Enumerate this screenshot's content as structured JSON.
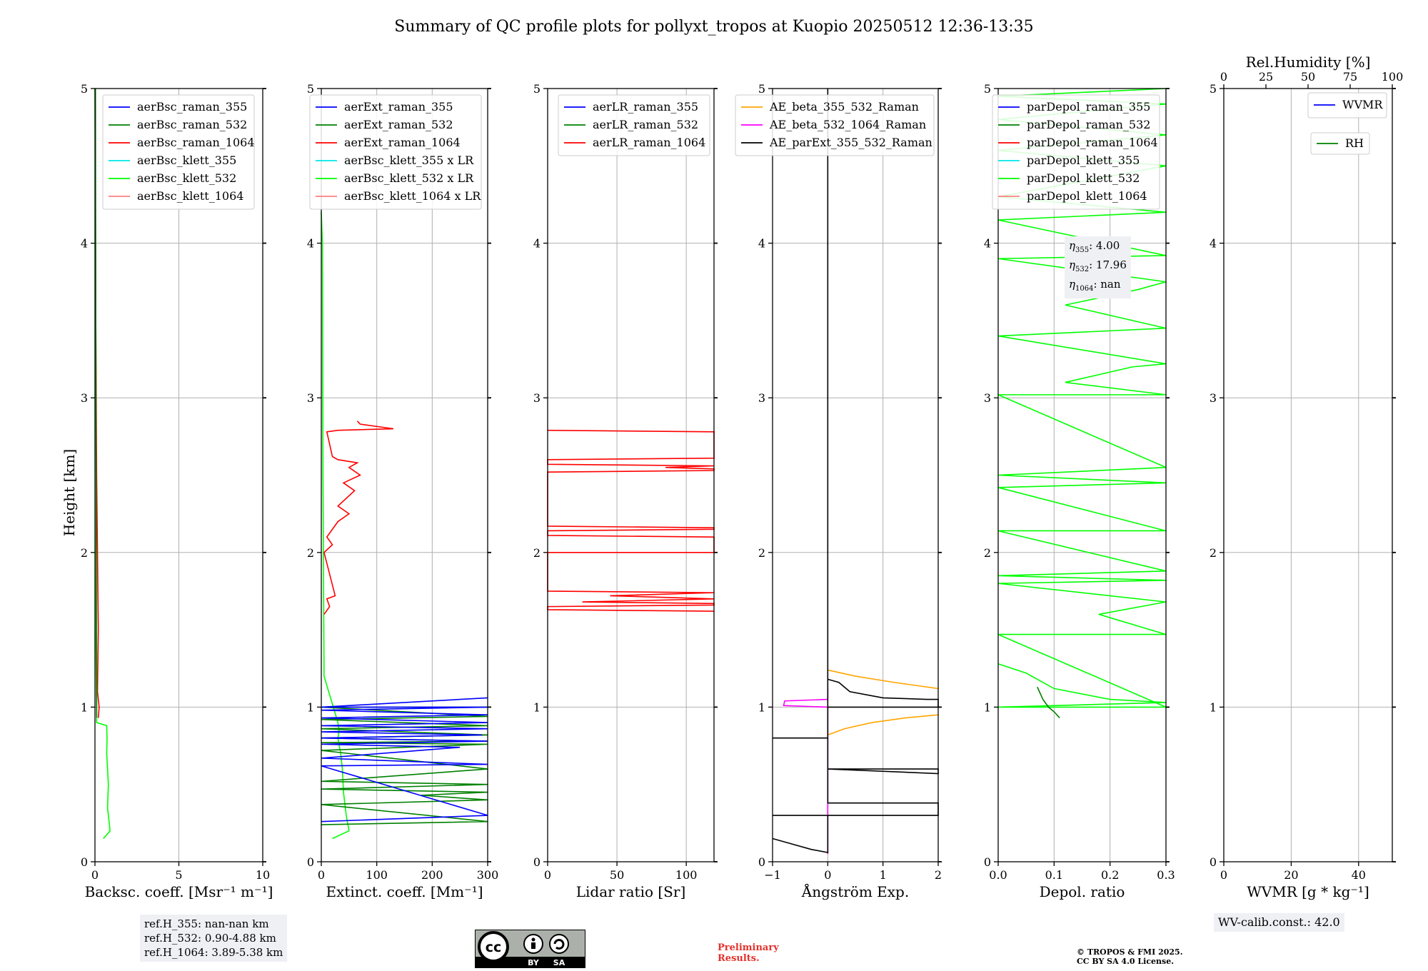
{
  "title": "Summary of QC profile plots for pollyxt_tropos at Kuopio 20250512 12:36-13:35",
  "y_axis": {
    "label": "Height [km]",
    "ylim": [
      0,
      5
    ],
    "ticks": [
      0,
      1,
      2,
      3,
      4,
      5
    ]
  },
  "chart_data": [
    {
      "id": "backscatter",
      "type": "line",
      "xlabel": "Backsc. coeff. [Msr⁻¹ m⁻¹]",
      "xlim": [
        0,
        10
      ],
      "xticks": [
        0,
        5,
        10
      ],
      "legend": [
        "aerBsc_raman_355",
        "aerBsc_raman_532",
        "aerBsc_raman_1064",
        "aerBsc_klett_355",
        "aerBsc_klett_532",
        "aerBsc_klett_1064"
      ],
      "legend_colors": [
        "#0000ff",
        "#008000",
        "#ff0000",
        "#00e5e5",
        "#00ff00",
        "#ff7f7f"
      ],
      "series": [
        {
          "name": "aerBsc_klett_532",
          "color": "#00ff00",
          "x": [
            0.5,
            0.9,
            0.85,
            0.75,
            0.8,
            0.7,
            0.72,
            0.7,
            0.1,
            0.05,
            0.08,
            0.05,
            0.02,
            0.0
          ],
          "y": [
            0.15,
            0.2,
            0.25,
            0.35,
            0.5,
            0.7,
            0.8,
            0.88,
            0.9,
            1.5,
            2.5,
            3.5,
            4.5,
            5.0
          ]
        },
        {
          "name": "aerBsc_raman_1064",
          "color": "#ff0000",
          "x": [
            0.2,
            0.25,
            0.15,
            0.2,
            0.1,
            0.05,
            0.03
          ],
          "y": [
            0.93,
            1.0,
            1.1,
            1.5,
            2.5,
            3.5,
            4.2
          ]
        },
        {
          "name": "aerBsc_raman_532",
          "color": "#008000",
          "x": [
            0.1,
            0.1,
            0.08,
            0.05,
            0.03
          ],
          "y": [
            0.93,
            1.12,
            2.0,
            3.5,
            5.0
          ]
        }
      ],
      "annotation": [
        "ref.H_355: nan-nan km",
        "ref.H_532: 0.90-4.88 km",
        "ref.H_1064: 3.89-5.38 km"
      ]
    },
    {
      "id": "extinction",
      "type": "line",
      "xlabel": "Extinct. coeff. [Mm⁻¹]",
      "xlim": [
        0,
        300
      ],
      "xticks": [
        0,
        100,
        200,
        300
      ],
      "legend": [
        "aerExt_raman_355",
        "aerExt_raman_532",
        "aerExt_raman_1064",
        "aerBsc_klett_355 x LR",
        "aerBsc_klett_532 x LR",
        "aerBsc_klett_1064 x LR"
      ],
      "legend_colors": [
        "#0000ff",
        "#008000",
        "#ff0000",
        "#00e5e5",
        "#00ff00",
        "#ff7f7f"
      ],
      "series": [
        {
          "name": "aerBsc_klett_532 x LR",
          "color": "#00ff00",
          "x": [
            20,
            50,
            45,
            40,
            38,
            35,
            30,
            32,
            30,
            5,
            3,
            2,
            0
          ],
          "y": [
            0.15,
            0.2,
            0.3,
            0.45,
            0.6,
            0.7,
            0.8,
            0.85,
            0.9,
            1.2,
            2.5,
            4.0,
            4.2
          ]
        },
        {
          "name": "aerExt_raman_1064",
          "color": "#ff0000",
          "x": [
            5,
            15,
            10,
            25,
            5,
            20,
            10,
            30,
            50,
            30,
            60,
            40,
            70,
            50,
            65,
            30,
            20,
            15,
            10,
            30,
            130,
            70,
            65
          ],
          "y": [
            1.6,
            1.65,
            1.7,
            1.72,
            2.0,
            2.05,
            2.1,
            2.2,
            2.25,
            2.3,
            2.4,
            2.45,
            2.5,
            2.55,
            2.58,
            2.6,
            2.62,
            2.7,
            2.78,
            2.79,
            2.8,
            2.83,
            2.85
          ]
        },
        {
          "name": "aerExt_raman_532",
          "color": "#008000",
          "x": [
            0,
            300,
            0,
            300,
            180,
            300,
            0,
            300,
            0,
            300,
            0,
            300,
            0,
            300,
            0,
            300,
            0,
            300,
            0,
            300,
            0,
            300
          ],
          "y": [
            0.24,
            0.26,
            0.37,
            0.4,
            0.43,
            0.45,
            0.47,
            0.5,
            0.52,
            0.6,
            0.72,
            0.76,
            0.77,
            0.78,
            0.8,
            0.82,
            0.86,
            0.88,
            0.92,
            0.94,
            1.0,
            1.0
          ]
        },
        {
          "name": "aerExt_raman_355",
          "color": "#0000ff",
          "x": [
            0,
            300,
            0,
            300,
            0,
            250,
            0,
            300,
            0,
            290,
            0,
            300,
            0,
            300,
            0,
            300,
            0,
            300,
            0,
            300
          ],
          "y": [
            0.26,
            0.3,
            0.62,
            0.63,
            0.67,
            0.74,
            0.76,
            0.78,
            0.8,
            0.82,
            0.84,
            0.86,
            0.88,
            0.9,
            0.93,
            0.95,
            0.98,
            1.0,
            1.0,
            1.06
          ]
        }
      ]
    },
    {
      "id": "lidar_ratio",
      "type": "line",
      "xlabel": "Lidar ratio [Sr]",
      "xlim": [
        0,
        120
      ],
      "xticks": [
        0,
        50,
        100
      ],
      "legend": [
        "aerLR_raman_355",
        "aerLR_raman_532",
        "aerLR_raman_1064"
      ],
      "legend_colors": [
        "#0000ff",
        "#008000",
        "#ff0000"
      ],
      "series": [
        {
          "name": "aerLR_raman_1064",
          "color": "#ff0000",
          "x": [
            120,
            0,
            0,
            120,
            120,
            25,
            120,
            45,
            120,
            0,
            0,
            120,
            120,
            0,
            0,
            120,
            120,
            0,
            0,
            120,
            120,
            85,
            120,
            0,
            0,
            120,
            120,
            0
          ],
          "y": [
            1.62,
            1.63,
            1.65,
            1.66,
            1.67,
            1.68,
            1.7,
            1.72,
            1.74,
            1.75,
            2.0,
            2.0,
            2.1,
            2.11,
            2.14,
            2.15,
            2.16,
            2.17,
            2.52,
            2.53,
            2.54,
            2.55,
            2.56,
            2.57,
            2.6,
            2.61,
            2.78,
            2.79
          ]
        }
      ]
    },
    {
      "id": "angstrom",
      "type": "line",
      "xlabel": "Ångström Exp.",
      "xlim": [
        -1,
        2
      ],
      "xticks": [
        -1,
        0,
        1,
        2
      ],
      "legend": [
        "AE_beta_355_532_Raman",
        "AE_beta_532_1064_Raman",
        "AE_parExt_355_532_Raman"
      ],
      "legend_colors": [
        "#ffa500",
        "#ff00ff",
        "#000000"
      ],
      "series": [
        {
          "name": "AE_beta_532_1064_Raman",
          "color": "#ff00ff",
          "x": [
            0.0,
            0.0,
            0.0,
            -0.8,
            -0.78,
            0.0,
            0.0
          ],
          "y": [
            0.05,
            0.5,
            1.0,
            1.01,
            1.04,
            1.05,
            1.12
          ]
        },
        {
          "name": "AE_beta_355_532_Raman",
          "color": "#ffa500",
          "x": [
            0.0,
            0.3,
            0.8,
            1.4,
            2.0
          ],
          "y": [
            0.82,
            0.86,
            0.9,
            0.93,
            0.95
          ]
        },
        {
          "name": "AE_beta_355_532_Raman (upper)",
          "color": "#ffa500",
          "x": [
            0.0,
            0.5,
            1.2,
            2.0
          ],
          "y": [
            1.24,
            1.2,
            1.16,
            1.12
          ]
        },
        {
          "name": "AE_parExt_355_532_Raman",
          "color": "#000000",
          "x": [
            -1.0,
            -0.7,
            -0.3,
            0.0,
            0.0,
            -1.0,
            0.0,
            2.0,
            2.0,
            0.0,
            0.0,
            2.0,
            2.0,
            0.0,
            0.0,
            -1.0,
            0.0,
            0.0,
            2.0,
            0.0,
            0.0,
            0.2,
            0.4,
            1.0,
            1.8,
            2.0,
            2.0,
            0.0,
            0.0,
            0.0
          ],
          "y": [
            0.15,
            0.12,
            0.08,
            0.06,
            0.3,
            0.3,
            0.3,
            0.3,
            0.38,
            0.38,
            0.6,
            0.57,
            0.6,
            0.6,
            0.8,
            0.8,
            0.8,
            1.0,
            1.0,
            1.0,
            1.18,
            1.16,
            1.1,
            1.06,
            1.05,
            1.05,
            1.0,
            1.0,
            4.6,
            5.0
          ]
        }
      ]
    },
    {
      "id": "depol",
      "type": "line",
      "xlabel": "Depol. ratio",
      "xlim": [
        0,
        0.3
      ],
      "xticks": [
        0.0,
        0.1,
        0.2,
        0.3
      ],
      "legend": [
        "parDepol_raman_355",
        "parDepol_raman_532",
        "parDepol_raman_1064",
        "parDepol_klett_355",
        "parDepol_klett_532",
        "parDepol_klett_1064"
      ],
      "legend_colors": [
        "#0000ff",
        "#008000",
        "#ff0000",
        "#00e5e5",
        "#00ff00",
        "#ff7f7f"
      ],
      "series": [
        {
          "name": "parDepol_klett_532",
          "color": "#00ff00",
          "x": [
            0.0,
            0.05,
            0.1,
            0.2,
            0.3,
            0.0,
            0.3,
            0.0,
            0.3,
            0.18,
            0.3,
            0.0,
            0.3,
            0.0,
            0.3,
            0.0,
            0.3,
            0.0,
            0.3,
            0.0,
            0.3,
            0.0,
            0.3,
            0.12,
            0.24,
            0.3,
            0.0,
            0.3,
            0.12,
            0.25,
            0.3,
            0.0,
            0.3,
            0.0,
            0.3,
            0.0,
            0.3,
            0.0,
            0.3,
            0.0,
            0.3,
            0.0,
            0.3
          ],
          "y": [
            1.28,
            1.22,
            1.12,
            1.05,
            1.03,
            1.0,
            1.0,
            1.47,
            1.47,
            1.6,
            1.68,
            1.8,
            1.82,
            1.85,
            1.88,
            2.14,
            2.14,
            2.42,
            2.45,
            2.5,
            2.55,
            3.02,
            3.02,
            3.1,
            3.2,
            3.22,
            3.4,
            3.45,
            3.6,
            3.7,
            3.75,
            3.9,
            3.92,
            4.15,
            4.2,
            4.3,
            4.5,
            4.6,
            4.7,
            4.8,
            4.9,
            4.95,
            5.0
          ]
        },
        {
          "name": "parDepol_raman_532",
          "color": "#008000",
          "x": [
            0.07,
            0.08,
            0.09,
            0.1,
            0.11
          ],
          "y": [
            1.13,
            1.05,
            1.0,
            0.97,
            0.93
          ]
        }
      ],
      "annotation": [
        "η355: 4.00",
        "η532: 17.96",
        "η1064: nan"
      ]
    },
    {
      "id": "wvmr",
      "type": "line",
      "xlabel": "WVMR [g * kg⁻¹]",
      "xlim": [
        0,
        50
      ],
      "xticks": [
        0,
        20,
        40
      ],
      "top_xlabel": "Rel.Humidity [%]",
      "top_xlim": [
        0,
        100
      ],
      "top_xticks": [
        0,
        25,
        50,
        75,
        100
      ],
      "legend": [
        "WVMR"
      ],
      "legend_colors": [
        "#0000ff"
      ],
      "legend2": [
        "RH"
      ],
      "legend2_colors": [
        "#008000"
      ],
      "series": [],
      "annotation": [
        "WV-calib.const.: 42.0"
      ]
    }
  ],
  "labels": {
    "ann_eta355_prefix": "η",
    "ann_eta355_sub": "355",
    "ann_eta355_val": ": 4.00",
    "ann_eta532_sub": "532",
    "ann_eta532_val": ": 17.96",
    "ann_eta1064_sub": "1064",
    "ann_eta1064_val": ": nan",
    "preliminary_line1": "Preliminary",
    "preliminary_line2": "Results.",
    "copyright_line1": "© TROPOS & FMI 2025.",
    "copyright_line2": "CC BY SA 4.0 License.",
    "cc_by": "BY",
    "cc_sa": "SA",
    "cc_text": "cc"
  },
  "colors": {
    "grid": "#b0b0b0",
    "annotation_bg": "#eef0f4",
    "preliminary": "#e4312b"
  }
}
